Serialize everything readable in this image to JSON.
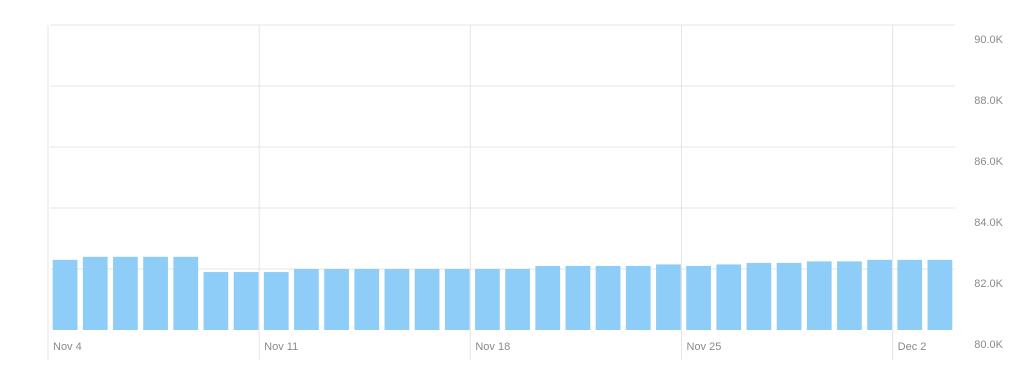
{
  "chart_data": {
    "type": "bar",
    "title": "",
    "xlabel": "",
    "ylabel": "",
    "categories": [
      "2023-11-04",
      "2023-11-05",
      "2023-11-06",
      "2023-11-07",
      "2023-11-08",
      "2023-11-09",
      "2023-11-10",
      "2023-11-11",
      "2023-11-12",
      "2023-11-13",
      "2023-11-14",
      "2023-11-15",
      "2023-11-16",
      "2023-11-17",
      "2023-11-18",
      "2023-11-19",
      "2023-11-20",
      "2023-11-21",
      "2023-11-22",
      "2023-11-23",
      "2023-11-24",
      "2023-11-25",
      "2023-11-26",
      "2023-11-27",
      "2023-11-28",
      "2023-11-29",
      "2023-11-30",
      "2023-12-01",
      "2023-12-02",
      "2023-12-03"
    ],
    "values": [
      82.3,
      82.4,
      82.4,
      82.4,
      82.4,
      81.9,
      81.9,
      81.9,
      82.0,
      82.0,
      82.0,
      82.0,
      82.0,
      82.0,
      82.0,
      82.0,
      82.1,
      82.1,
      82.1,
      82.1,
      82.15,
      82.1,
      82.15,
      82.2,
      82.2,
      82.25,
      82.25,
      82.3,
      82.3,
      82.3
    ],
    "ylim": [
      80,
      90
    ],
    "yticks": [
      {
        "value": 80,
        "label": "80.0K"
      },
      {
        "value": 82,
        "label": "82.0K"
      },
      {
        "value": 84,
        "label": "84.0K"
      },
      {
        "value": 86,
        "label": "86.0K"
      },
      {
        "value": 88,
        "label": "88.0K"
      },
      {
        "value": 90,
        "label": "90.0K"
      }
    ],
    "xticks": [
      {
        "index": 0,
        "label": "Nov 4"
      },
      {
        "index": 7,
        "label": "Nov 11"
      },
      {
        "index": 14,
        "label": "Nov 18"
      },
      {
        "index": 21,
        "label": "Nov 25"
      },
      {
        "index": 28,
        "label": "Dec 2"
      }
    ],
    "y_axis_position": "right",
    "grid": true,
    "bar_color": "#8ecdf7",
    "grid_color": "#e4e4e4",
    "label_color": "#8a8a8a"
  }
}
